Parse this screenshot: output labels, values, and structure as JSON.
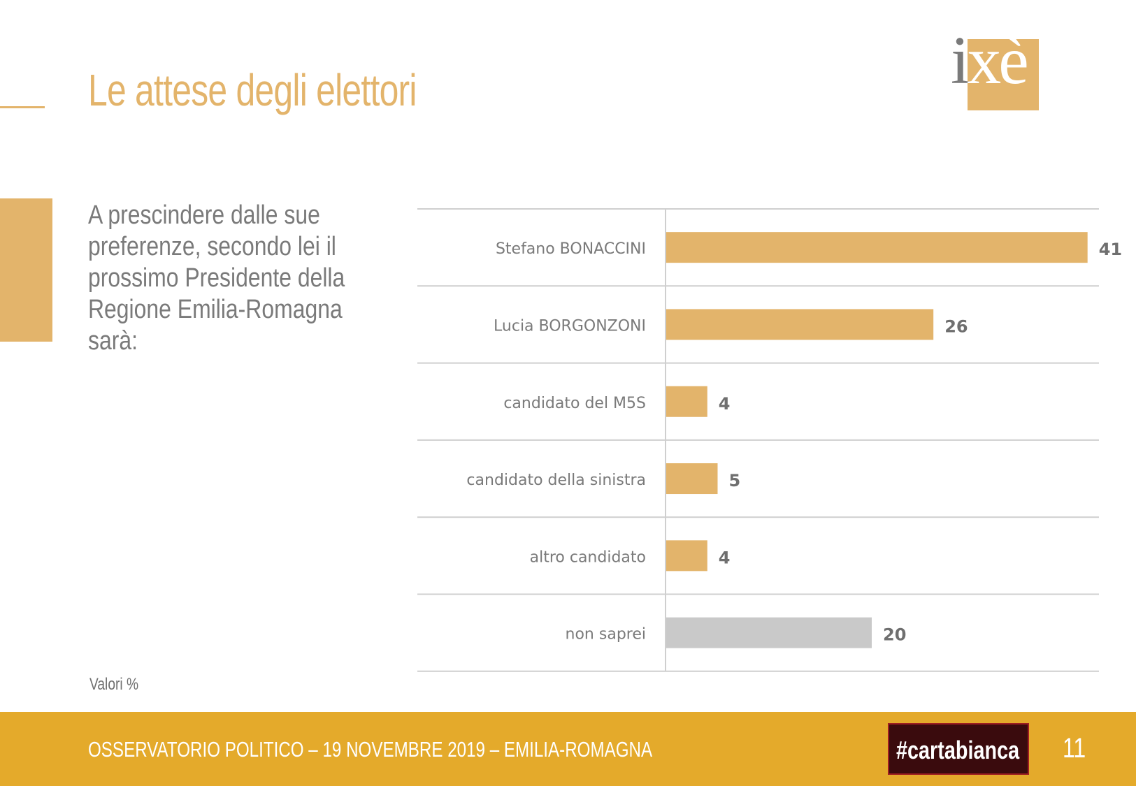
{
  "header": {
    "title": "Le attese degli elettori",
    "logo_text": "ixè"
  },
  "question": "A prescindere dalle sue preferenze, secondo lei il prossimo Presidente della Regione Emilia-Romagna sarà:",
  "units_note": "Valori %",
  "chart_data": {
    "type": "bar",
    "orientation": "horizontal",
    "categories": [
      "Stefano BONACCINI",
      "Lucia BORGONZONI",
      "candidato del M5S",
      "candidato della sinistra",
      "altro candidato",
      "non saprei"
    ],
    "values": [
      41,
      26,
      4,
      5,
      4,
      20
    ],
    "bar_colors": [
      "#e3b46b",
      "#e3b46b",
      "#e3b46b",
      "#e3b46b",
      "#e3b46b",
      "#c9c9c9"
    ],
    "xlim": [
      0,
      44
    ],
    "grid": false
  },
  "footer": {
    "text": "OSSERVATORIO POLITICO – 19 NOVEMBRE 2019 – EMILIA-ROMAGNA",
    "brand": "#cartabianca",
    "page_number": "11"
  },
  "colors": {
    "accent": "#e3b46b",
    "footer_bg": "#e4aa2b",
    "neutral_bar": "#c9c9c9",
    "text_gray": "#7a7a7a"
  }
}
